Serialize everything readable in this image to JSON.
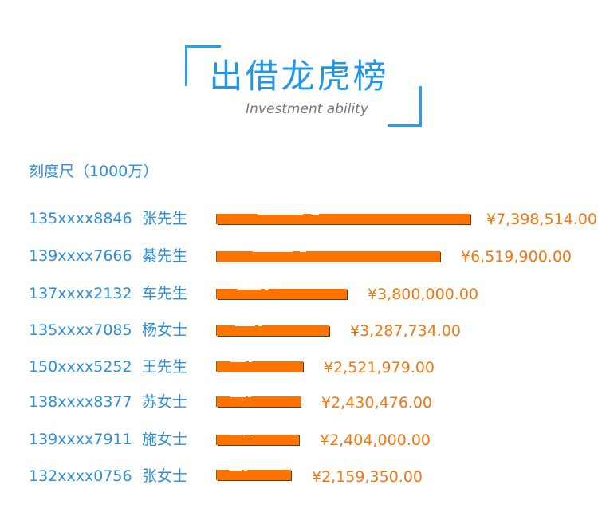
{
  "header": {
    "title": "出借龙虎榜",
    "subtitle": "Investment ability",
    "accent_color": "#2a9ee8"
  },
  "scale": {
    "label": "刻度尺（1000万）",
    "value": 10000000
  },
  "chart_data": {
    "type": "bar",
    "orientation": "horizontal",
    "bar_color": "#ff7400",
    "xlim": [
      0,
      10000000
    ],
    "rows": [
      {
        "phone": "135xxxx8846",
        "name": "张先生",
        "value": 7398514.0,
        "amount_label": "¥7,398,514.00"
      },
      {
        "phone": "139xxxx7666",
        "name": "綦先生",
        "value": 6519900.0,
        "amount_label": "¥6,519,900.00"
      },
      {
        "phone": "137xxxx2132",
        "name": "车先生",
        "value": 3800000.0,
        "amount_label": "¥3,800,000.00"
      },
      {
        "phone": "135xxxx7085",
        "name": "杨女士",
        "value": 3287734.0,
        "amount_label": "¥3,287,734.00"
      },
      {
        "phone": "150xxxx5252",
        "name": "王先生",
        "value": 2521979.0,
        "amount_label": "¥2,521,979.00"
      },
      {
        "phone": "138xxxx8377",
        "name": "苏女士",
        "value": 2430476.0,
        "amount_label": "¥2,430,476.00"
      },
      {
        "phone": "139xxxx7911",
        "name": "施女士",
        "value": 2404000.0,
        "amount_label": "¥2,404,000.00"
      },
      {
        "phone": "132xxxx0756",
        "name": "张女士",
        "value": 2159350.0,
        "amount_label": "¥2,159,350.00"
      }
    ]
  }
}
